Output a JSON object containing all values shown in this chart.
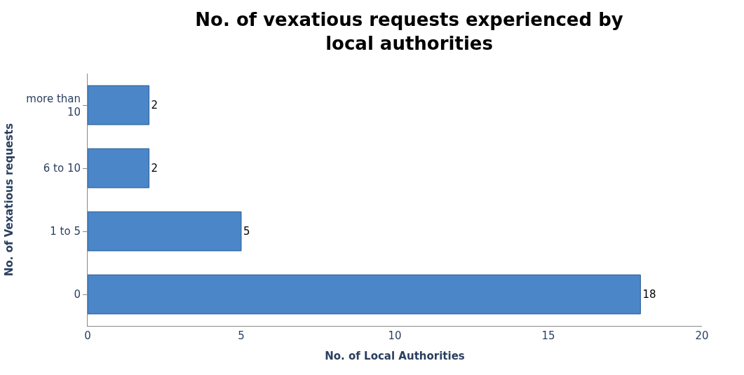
{
  "chart_data": {
    "type": "bar",
    "orientation": "horizontal",
    "title": "No. of vexatious requests experienced by local authorities",
    "xlabel": "No. of Local Authorities",
    "ylabel": "No. of Vexatious requests",
    "categories": [
      "more than 10",
      "6 to 10",
      "1 to 5",
      "0"
    ],
    "values": [
      2,
      2,
      5,
      18
    ],
    "color": "#4a86c8",
    "xlim": [
      0,
      20
    ],
    "xticks": [
      0,
      5,
      10,
      15,
      20
    ],
    "data_labels": true
  }
}
